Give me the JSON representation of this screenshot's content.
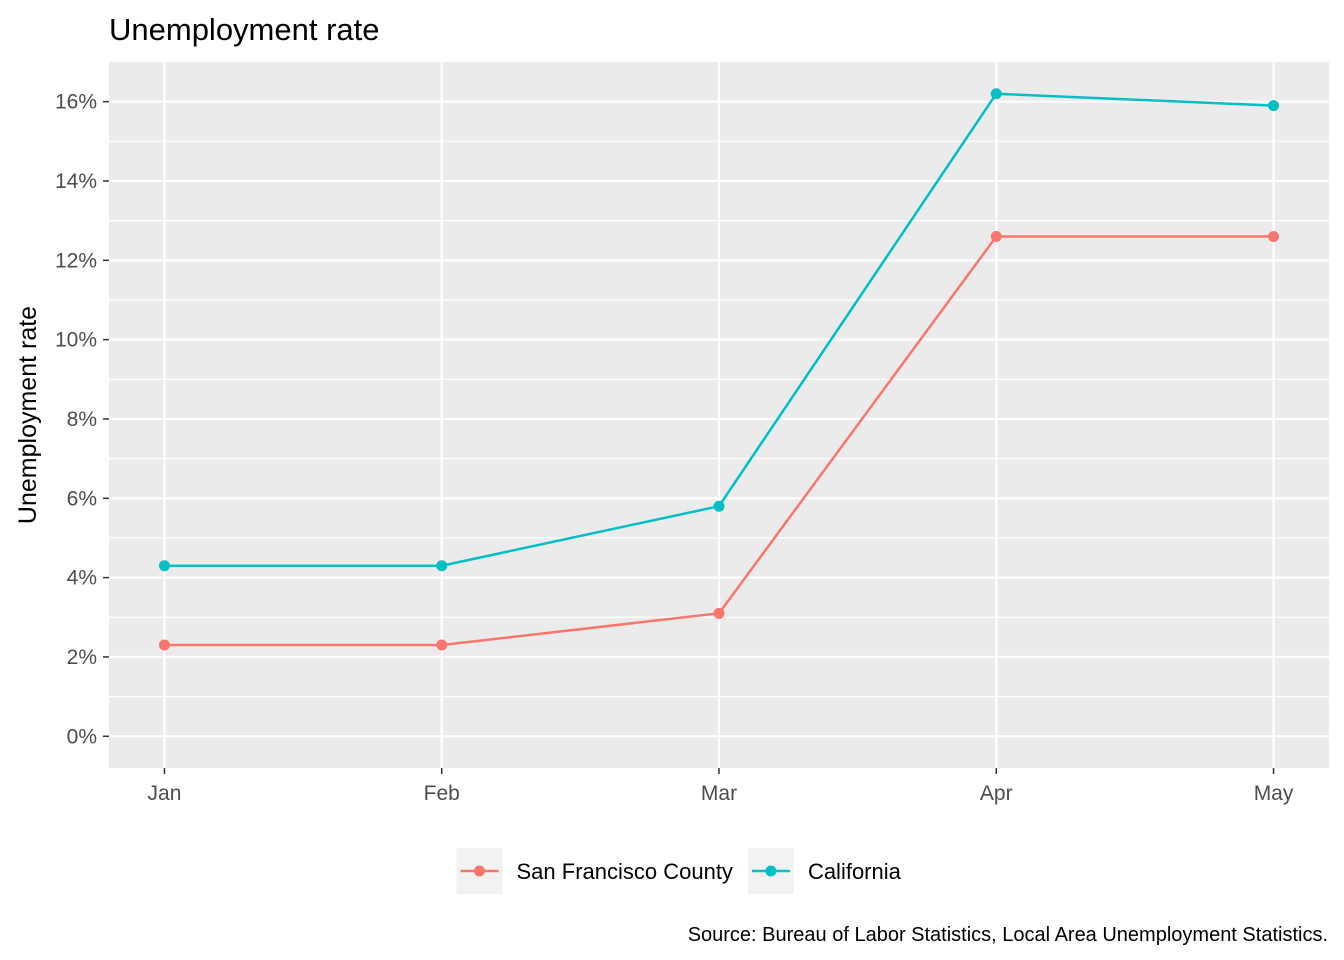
{
  "chart_data": {
    "type": "line",
    "title": "Unemployment rate",
    "xlabel": "",
    "ylabel": "Unemployment rate",
    "categories": [
      "Jan",
      "Feb",
      "Mar",
      "Apr",
      "May"
    ],
    "y_ticks": [
      "0%",
      "2%",
      "4%",
      "6%",
      "8%",
      "10%",
      "12%",
      "14%",
      "16%"
    ],
    "ylim": [
      -0.8,
      17.0
    ],
    "grid": true,
    "legend_position": "bottom",
    "series": [
      {
        "name": "San Francisco County",
        "color": "#F8766D",
        "values": [
          2.3,
          2.3,
          3.1,
          12.6,
          12.6
        ]
      },
      {
        "name": "California",
        "color": "#00BFC4",
        "values": [
          4.3,
          4.3,
          5.8,
          16.2,
          15.9
        ]
      }
    ],
    "caption": "Source: Bureau of Labor Statistics, Local Area Unemployment Statistics."
  }
}
